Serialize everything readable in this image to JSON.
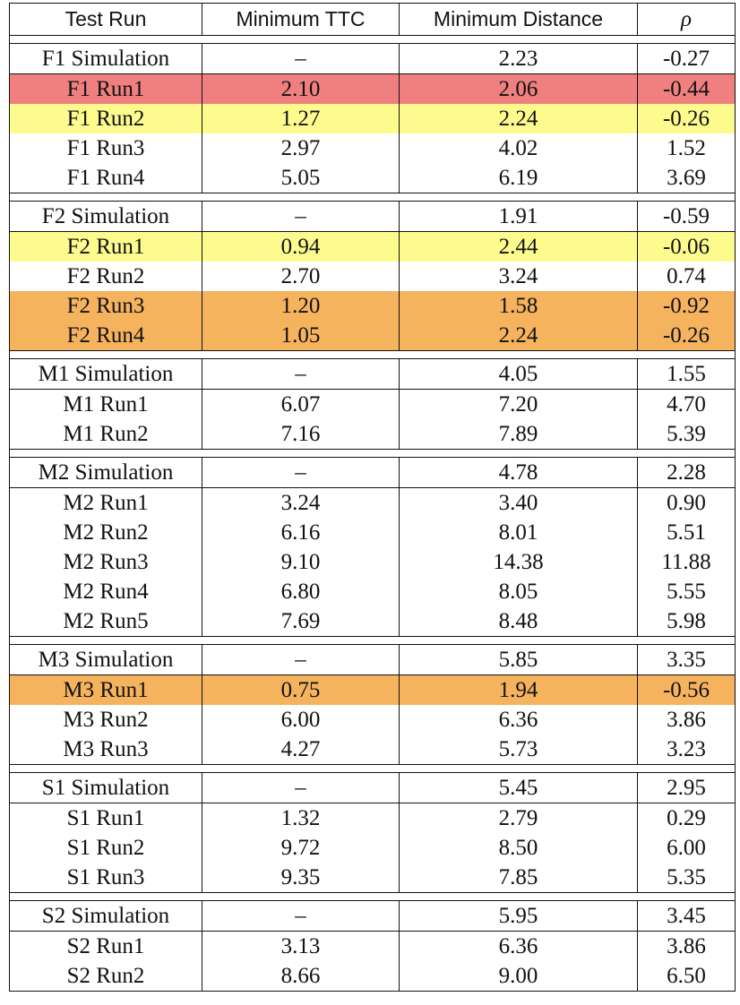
{
  "headers": [
    "Test Run",
    "Minimum TTC",
    "Minimum Distance",
    "ρ"
  ],
  "groups": [
    {
      "sim": [
        "F1 Simulation",
        "–",
        "2.23",
        "-0.27"
      ],
      "runs": [
        {
          "cells": [
            "F1 Run1",
            "2.10",
            "2.06",
            "-0.44"
          ],
          "highlight": "red"
        },
        {
          "cells": [
            "F1 Run2",
            "1.27",
            "2.24",
            "-0.26"
          ],
          "highlight": "yellow"
        },
        {
          "cells": [
            "F1 Run3",
            "2.97",
            "4.02",
            "1.52"
          ],
          "highlight": ""
        },
        {
          "cells": [
            "F1 Run4",
            "5.05",
            "6.19",
            "3.69"
          ],
          "highlight": ""
        }
      ]
    },
    {
      "sim": [
        "F2 Simulation",
        "–",
        "1.91",
        "-0.59"
      ],
      "runs": [
        {
          "cells": [
            "F2 Run1",
            "0.94",
            "2.44",
            "-0.06"
          ],
          "highlight": "yellow"
        },
        {
          "cells": [
            "F2 Run2",
            "2.70",
            "3.24",
            "0.74"
          ],
          "highlight": ""
        },
        {
          "cells": [
            "F2 Run3",
            "1.20",
            "1.58",
            "-0.92"
          ],
          "highlight": "orange"
        },
        {
          "cells": [
            "F2 Run4",
            "1.05",
            "2.24",
            "-0.26"
          ],
          "highlight": "orange"
        }
      ]
    },
    {
      "sim": [
        "M1 Simulation",
        "–",
        "4.05",
        "1.55"
      ],
      "runs": [
        {
          "cells": [
            "M1 Run1",
            "6.07",
            "7.20",
            "4.70"
          ],
          "highlight": ""
        },
        {
          "cells": [
            "M1 Run2",
            "7.16",
            "7.89",
            "5.39"
          ],
          "highlight": ""
        }
      ]
    },
    {
      "sim": [
        "M2 Simulation",
        "–",
        "4.78",
        "2.28"
      ],
      "runs": [
        {
          "cells": [
            "M2 Run1",
            "3.24",
            "3.40",
            "0.90"
          ],
          "highlight": ""
        },
        {
          "cells": [
            "M2 Run2",
            "6.16",
            "8.01",
            "5.51"
          ],
          "highlight": ""
        },
        {
          "cells": [
            "M2 Run3",
            "9.10",
            "14.38",
            "11.88"
          ],
          "highlight": ""
        },
        {
          "cells": [
            "M2 Run4",
            "6.80",
            "8.05",
            "5.55"
          ],
          "highlight": ""
        },
        {
          "cells": [
            "M2 Run5",
            "7.69",
            "8.48",
            "5.98"
          ],
          "highlight": ""
        }
      ]
    },
    {
      "sim": [
        "M3 Simulation",
        "–",
        "5.85",
        "3.35"
      ],
      "runs": [
        {
          "cells": [
            "M3 Run1",
            "0.75",
            "1.94",
            "-0.56"
          ],
          "highlight": "orange"
        },
        {
          "cells": [
            "M3 Run2",
            "6.00",
            "6.36",
            "3.86"
          ],
          "highlight": ""
        },
        {
          "cells": [
            "M3 Run3",
            "4.27",
            "5.73",
            "3.23"
          ],
          "highlight": ""
        }
      ]
    },
    {
      "sim": [
        "S1 Simulation",
        "–",
        "5.45",
        "2.95"
      ],
      "runs": [
        {
          "cells": [
            "S1 Run1",
            "1.32",
            "2.79",
            "0.29"
          ],
          "highlight": ""
        },
        {
          "cells": [
            "S1 Run2",
            "9.72",
            "8.50",
            "6.00"
          ],
          "highlight": ""
        },
        {
          "cells": [
            "S1 Run3",
            "9.35",
            "7.85",
            "5.35"
          ],
          "highlight": ""
        }
      ]
    },
    {
      "sim": [
        "S2 Simulation",
        "–",
        "5.95",
        "3.45"
      ],
      "runs": [
        {
          "cells": [
            "S2 Run1",
            "3.13",
            "6.36",
            "3.86"
          ],
          "highlight": ""
        },
        {
          "cells": [
            "S2 Run2",
            "8.66",
            "9.00",
            "6.50"
          ],
          "highlight": ""
        }
      ]
    }
  ],
  "colors": {
    "red": "#f08080",
    "yellow": "#fdfb8e",
    "orange": "#f5b35e"
  }
}
